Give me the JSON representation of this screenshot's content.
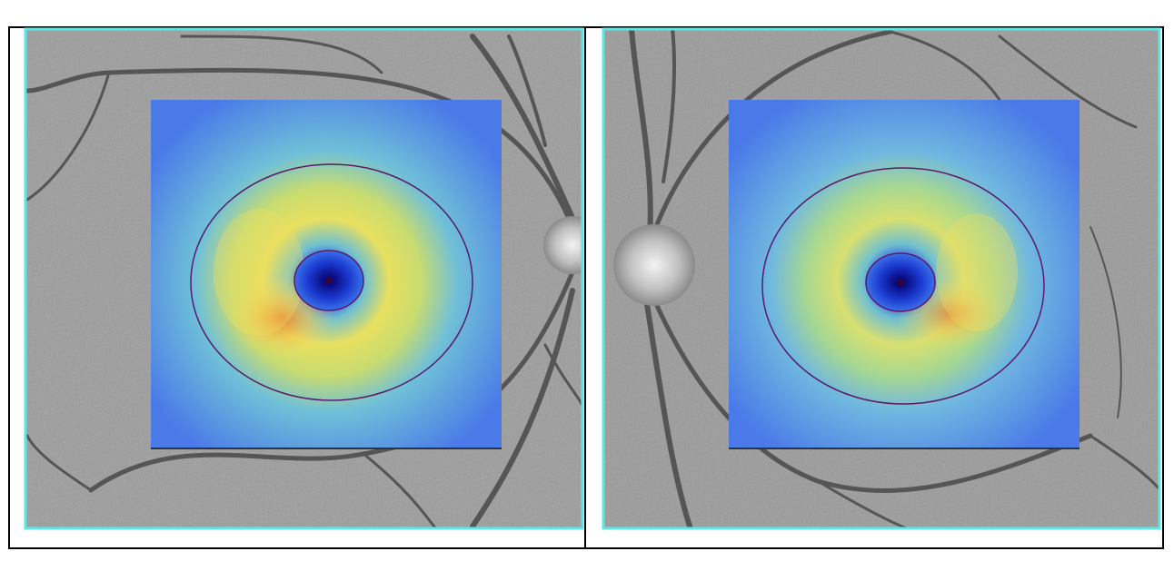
{
  "figure": {
    "panels": [
      {
        "id": "panel-left"
      },
      {
        "id": "panel-right"
      }
    ],
    "colors": {
      "frame": "#000000",
      "image_border": "#5ee6e6",
      "fundus_bg": "#9a9a9a",
      "vessel": "#505050",
      "contour": "#5a1a6a",
      "map_low": "#0a1aa0",
      "map_mid": "#5ab0e0",
      "map_high": "#f0e060",
      "map_peak": "#e87a30"
    }
  }
}
